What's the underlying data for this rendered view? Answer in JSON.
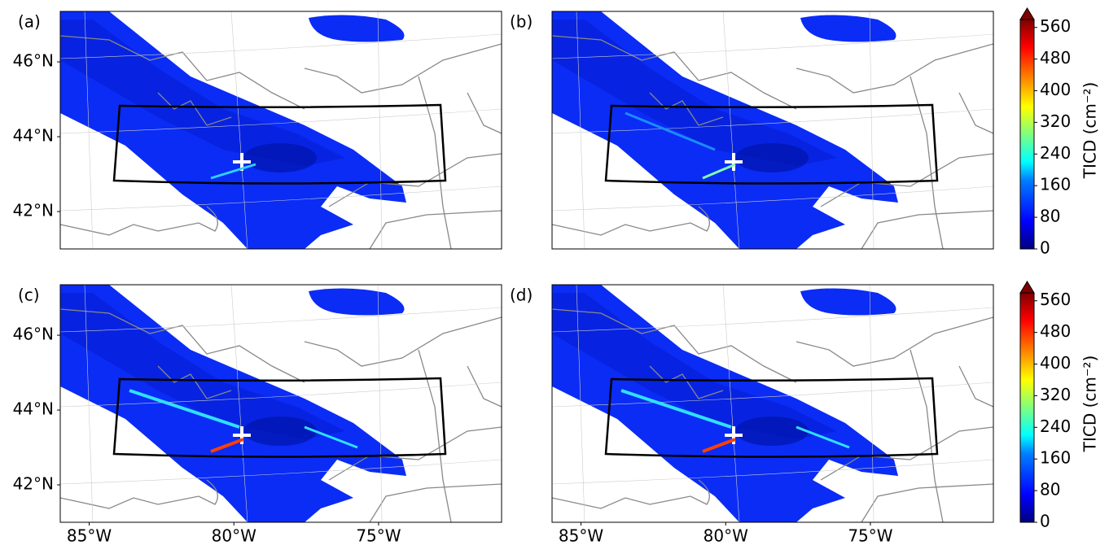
{
  "panels": [
    {
      "label": "(a)"
    },
    {
      "label": "(b)"
    },
    {
      "label": "(c)"
    },
    {
      "label": "(d)"
    }
  ],
  "xlim": [
    -86.0,
    -70.75
  ],
  "ylim": [
    41.0,
    47.35
  ],
  "lon_ticks": [
    {
      "value": -85,
      "label": "85°W"
    },
    {
      "value": -80,
      "label": "80°W"
    },
    {
      "value": -75,
      "label": "75°W"
    }
  ],
  "lat_ticks": [
    {
      "value": 46,
      "label": "46°N"
    },
    {
      "value": 44,
      "label": "44°N"
    },
    {
      "value": 42,
      "label": "42°N"
    }
  ],
  "colorbar": {
    "label": "TICD (cm⁻²)",
    "lim": [
      0,
      580
    ],
    "ticks": [
      0,
      80,
      160,
      240,
      320,
      400,
      480,
      560
    ]
  }
}
